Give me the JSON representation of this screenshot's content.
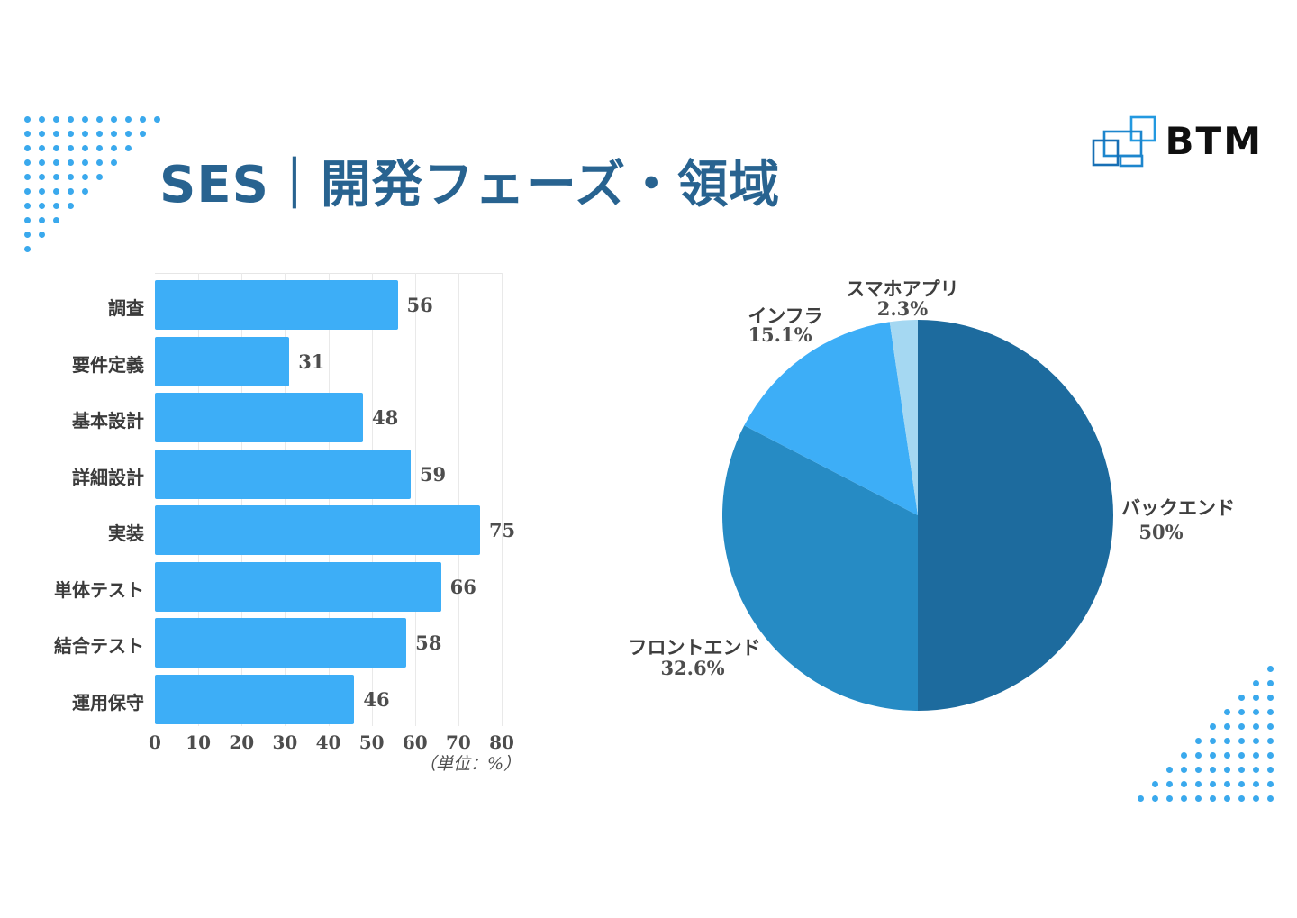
{
  "slide": {
    "title": "SES｜開発フェーズ・領域",
    "logo_text": "BTM",
    "title_color": "#286390",
    "dot_color": "#3aa9ed"
  },
  "chart_data": [
    {
      "type": "bar",
      "orientation": "horizontal",
      "title": "開発フェーズ",
      "categories": [
        "調査",
        "要件定義",
        "基本設計",
        "詳細設計",
        "実装",
        "単体テスト",
        "結合テスト",
        "運用保守"
      ],
      "values": [
        56,
        31,
        48,
        59,
        75,
        66,
        58,
        46
      ],
      "xlim": [
        0,
        80
      ],
      "x_ticks": [
        0,
        10,
        20,
        30,
        40,
        50,
        60,
        70,
        80
      ],
      "unit_note": "（単位：%）",
      "bar_color": "#3daef7",
      "grid": true,
      "legend": "none"
    },
    {
      "type": "pie",
      "title": "領域",
      "labels": [
        "バックエンド",
        "フロントエンド",
        "インフラ",
        "スマホアプリ"
      ],
      "values": [
        50,
        32.6,
        15.1,
        2.3
      ],
      "display_values": [
        "50%",
        "32.6%",
        "15.1%",
        "2.3%"
      ],
      "colors": [
        "#1d6b9e",
        "#268bc4",
        "#3daef7",
        "#a5d8f2"
      ],
      "start_angle_deg": 0,
      "direction": "clockwise",
      "legend": "none"
    }
  ]
}
